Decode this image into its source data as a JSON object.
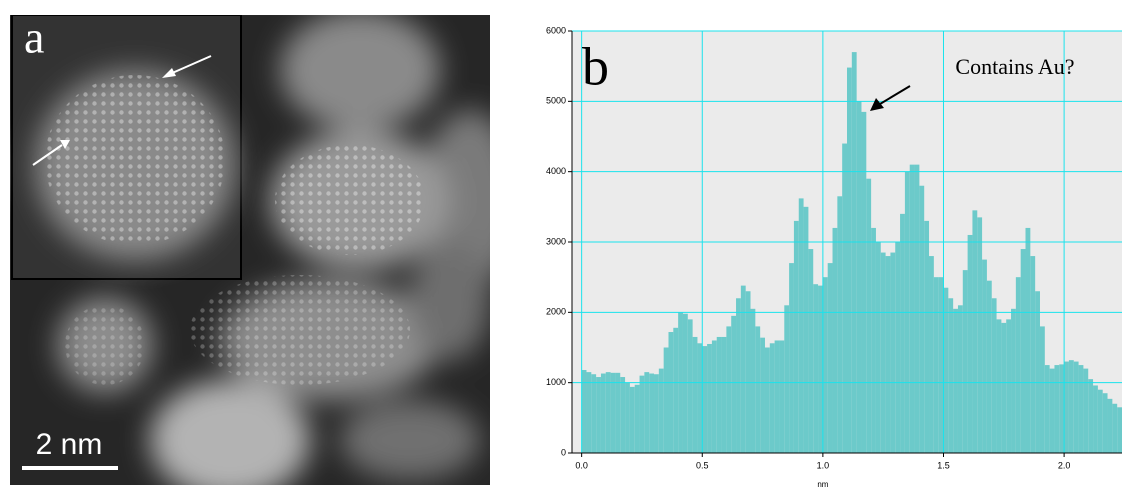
{
  "image_panel": {
    "label": "a",
    "scale_bar_label": "2 nm"
  },
  "chart_data": {
    "type": "histogram",
    "panel_label": "b",
    "annotation": "Contains Au?",
    "x_label": "nm",
    "color": "#6ccaca",
    "background": "#ebebeb",
    "grid_color": "#19e3ec",
    "grid": true,
    "bins": [
      0,
      0.02,
      0.04,
      0.06,
      0.08,
      0.1,
      0.12,
      0.14,
      0.16,
      0.18,
      0.2,
      0.22,
      0.24,
      0.26,
      0.28,
      0.3,
      0.32,
      0.34,
      0.36,
      0.38,
      0.4,
      0.42,
      0.44,
      0.46,
      0.48,
      0.5,
      0.52,
      0.54,
      0.56,
      0.58,
      0.6,
      0.62,
      0.64,
      0.66,
      0.68,
      0.7,
      0.72,
      0.74,
      0.76,
      0.78,
      0.8,
      0.82,
      0.84,
      0.86,
      0.88,
      0.9,
      0.92,
      0.94,
      0.96,
      0.98,
      1,
      1.02,
      1.04,
      1.06,
      1.08,
      1.1,
      1.12,
      1.14,
      1.16,
      1.18,
      1.2,
      1.22,
      1.24,
      1.26,
      1.28,
      1.3,
      1.32,
      1.34,
      1.36,
      1.38,
      1.4,
      1.42,
      1.44,
      1.46,
      1.48,
      1.5,
      1.52,
      1.54,
      1.56,
      1.58,
      1.6,
      1.62,
      1.64,
      1.66,
      1.68,
      1.7,
      1.72,
      1.74,
      1.76,
      1.78,
      1.8,
      1.82,
      1.84,
      1.86,
      1.88,
      1.9,
      1.92,
      1.94,
      1.96,
      1.98,
      2,
      2.02,
      2.04,
      2.06,
      2.08,
      2.1,
      2.12,
      2.14,
      2.16,
      2.18,
      2.2,
      2.22,
      2.24
    ],
    "values": [
      1180,
      1150,
      1120,
      1080,
      1130,
      1150,
      1140,
      1140,
      1080,
      1000,
      940,
      970,
      1100,
      1150,
      1130,
      1120,
      1200,
      1500,
      1720,
      1780,
      2000,
      1980,
      1900,
      1650,
      1560,
      1520,
      1550,
      1600,
      1650,
      1650,
      1800,
      1950,
      2200,
      2380,
      2300,
      2050,
      1800,
      1640,
      1500,
      1560,
      1600,
      1600,
      2100,
      2700,
      3300,
      3620,
      3500,
      2900,
      2400,
      2380,
      2500,
      2700,
      3200,
      3650,
      4400,
      5480,
      5700,
      5000,
      4850,
      3900,
      3200,
      3000,
      2850,
      2800,
      2850,
      3000,
      3400,
      4000,
      4100,
      4100,
      3800,
      3300,
      2800,
      2500,
      2500,
      2350,
      2200,
      2050,
      2100,
      2600,
      3100,
      3450,
      3350,
      2750,
      2450,
      2200,
      1900,
      1850,
      1900,
      2050,
      2500,
      2900,
      3200,
      2800,
      2300,
      1800,
      1250,
      1200,
      1250,
      1260,
      1300,
      1320,
      1300,
      1250,
      1200,
      1050,
      960,
      900,
      850,
      770,
      700,
      650
    ],
    "xlim": [
      -0.04,
      2.24
    ],
    "ylim": [
      0,
      6000
    ],
    "xticks": [
      {
        "value": 0,
        "label": "0.0"
      },
      0.5,
      {
        "value": 1,
        "label": "1.0"
      },
      1.5,
      {
        "value": 2,
        "label": "2.0"
      }
    ],
    "yticks": [
      0,
      1000,
      2000,
      3000,
      4000,
      5000,
      6000
    ]
  }
}
